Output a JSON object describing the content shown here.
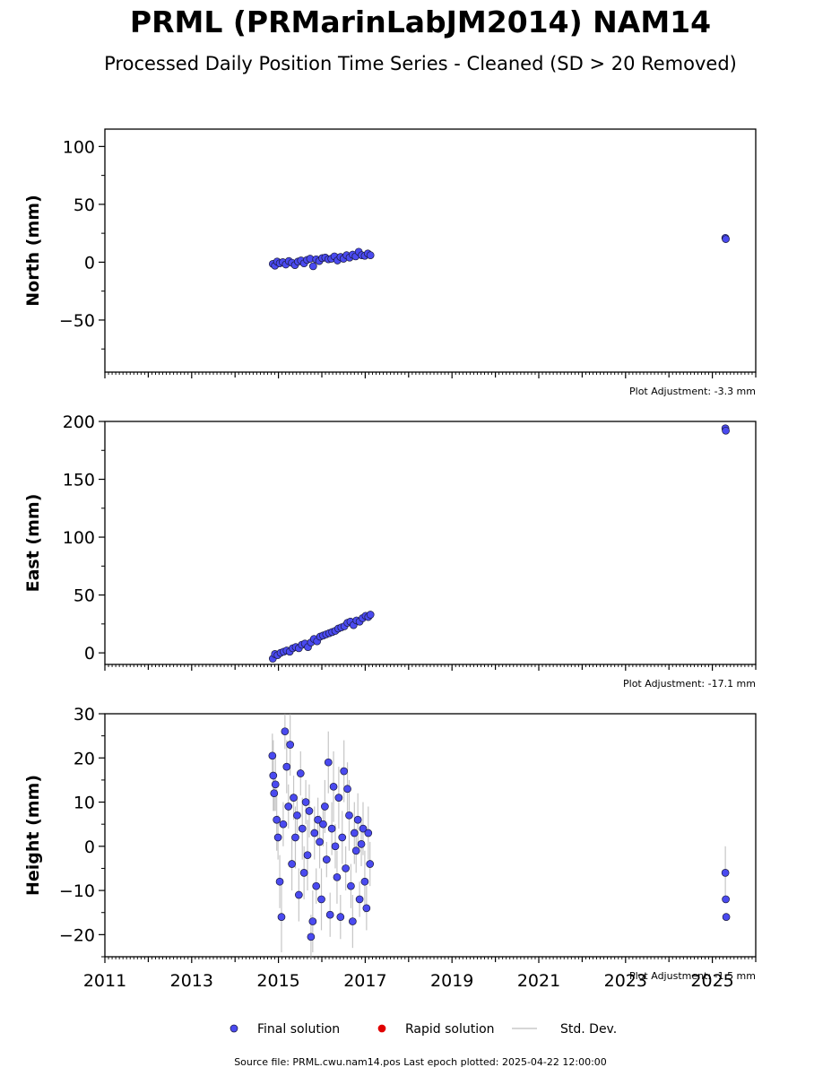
{
  "title": "PRML (PRMarinLabJM2014) NAM14",
  "subtitle": "Processed Daily Position Time Series - Cleaned (SD > 20 Removed)",
  "footer": "Source file: PRML.cwu.nam14.pos  Last epoch plotted: 2025-04-22 12:00:00",
  "legend": [
    {
      "label": "Final solution",
      "color": "#4a4af0",
      "kind": "dot"
    },
    {
      "label": "Rapid solution",
      "color": "#e00000",
      "kind": "dot"
    },
    {
      "label": "Std. Dev.",
      "color": "#c8c8c8",
      "kind": "line"
    }
  ],
  "colors": {
    "final": "#4a4af0",
    "rapid": "#e00000",
    "stddev": "#a0a0a0",
    "edge": "#1a1a3a"
  },
  "chart_data": [
    {
      "type": "scatter",
      "ylabel": "North (mm)",
      "adjustment": "Plot Adjustment: -3.3 mm",
      "xlim": [
        2011.0,
        2026.0
      ],
      "ylim": [
        -95,
        115
      ],
      "yticks": [
        -50,
        0,
        50,
        100
      ],
      "ytick_labels": [
        "−50",
        "0",
        "50",
        "100"
      ],
      "x": [
        2014.87,
        2014.92,
        2014.97,
        2015.03,
        2015.1,
        2015.17,
        2015.24,
        2015.31,
        2015.38,
        2015.45,
        2015.52,
        2015.59,
        2015.66,
        2015.73,
        2015.8,
        2015.87,
        2015.94,
        2016.01,
        2016.08,
        2016.15,
        2016.22,
        2016.29,
        2016.36,
        2016.43,
        2016.5,
        2016.57,
        2016.64,
        2016.71,
        2016.78,
        2016.85,
        2016.92,
        2016.99,
        2017.06,
        2017.12,
        2025.3,
        2025.31
      ],
      "y": [
        -1.5,
        -3.0,
        0.5,
        -1.0,
        0.0,
        -2.0,
        1.0,
        -0.5,
        -2.5,
        0.5,
        1.5,
        -1.0,
        2.0,
        3.0,
        -3.5,
        2.5,
        1.0,
        3.5,
        4.0,
        2.5,
        3.0,
        5.0,
        1.5,
        4.5,
        3.0,
        6.0,
        4.0,
        6.5,
        5.0,
        9.0,
        6.0,
        5.5,
        7.5,
        6.0,
        21.0,
        20.0
      ],
      "ystd": []
    },
    {
      "type": "scatter",
      "ylabel": "East (mm)",
      "adjustment": "Plot Adjustment: -17.1 mm",
      "xlim": [
        2011.0,
        2026.0
      ],
      "ylim": [
        -10,
        200
      ],
      "yticks": [
        0,
        50,
        100,
        150,
        200
      ],
      "ytick_labels": [
        "0",
        "50",
        "100",
        "150",
        "200"
      ],
      "x": [
        2014.87,
        2014.92,
        2014.98,
        2015.05,
        2015.12,
        2015.19,
        2015.26,
        2015.33,
        2015.4,
        2015.47,
        2015.54,
        2015.61,
        2015.68,
        2015.75,
        2015.82,
        2015.89,
        2015.96,
        2016.03,
        2016.1,
        2016.17,
        2016.24,
        2016.31,
        2016.38,
        2016.45,
        2016.52,
        2016.59,
        2016.66,
        2016.73,
        2016.8,
        2016.87,
        2016.94,
        2017.01,
        2017.07,
        2017.12,
        2025.3,
        2025.31
      ],
      "y": [
        -5.0,
        -1.0,
        -2.0,
        0.0,
        1.0,
        2.0,
        1.0,
        4.0,
        5.0,
        4.0,
        7.0,
        8.0,
        5.0,
        9.0,
        12.0,
        10.0,
        14.0,
        15.0,
        16.0,
        17.0,
        18.0,
        19.0,
        21.0,
        22.0,
        23.0,
        26.0,
        27.0,
        24.0,
        28.0,
        27.0,
        30.0,
        32.0,
        31.0,
        33.0,
        194.0,
        192.0
      ],
      "ystd": []
    },
    {
      "type": "scatter",
      "ylabel": "Height (mm)",
      "adjustment": "Plot Adjustment: -1.5 mm",
      "xlim": [
        2011.0,
        2026.0
      ],
      "ylim": [
        -25,
        30
      ],
      "yticks": [
        -20,
        -10,
        0,
        10,
        20,
        30
      ],
      "ytick_labels": [
        "−20",
        "−10",
        "0",
        "10",
        "20",
        "30"
      ],
      "xticks": [
        2011,
        2013,
        2015,
        2017,
        2019,
        2021,
        2023,
        2025
      ],
      "xtick_labels": [
        "2011",
        "2013",
        "2015",
        "2017",
        "2019",
        "2021",
        "2023",
        "2025"
      ],
      "x": [
        2014.86,
        2014.88,
        2014.9,
        2014.93,
        2014.96,
        2014.99,
        2015.03,
        2015.07,
        2015.11,
        2015.15,
        2015.19,
        2015.23,
        2015.27,
        2015.31,
        2015.35,
        2015.39,
        2015.43,
        2015.47,
        2015.51,
        2015.55,
        2015.59,
        2015.63,
        2015.67,
        2015.71,
        2015.75,
        2015.79,
        2015.83,
        2015.87,
        2015.91,
        2015.95,
        2015.99,
        2016.03,
        2016.07,
        2016.11,
        2016.15,
        2016.19,
        2016.23,
        2016.27,
        2016.31,
        2016.35,
        2016.39,
        2016.43,
        2016.47,
        2016.51,
        2016.55,
        2016.59,
        2016.63,
        2016.67,
        2016.71,
        2016.75,
        2016.79,
        2016.83,
        2016.87,
        2016.91,
        2016.95,
        2016.99,
        2017.03,
        2017.07,
        2017.11,
        2025.3,
        2025.31,
        2025.32
      ],
      "y": [
        20.5,
        16.0,
        12.0,
        14.0,
        6.0,
        2.0,
        -8.0,
        -16.0,
        5.0,
        26.0,
        18.0,
        9.0,
        23.0,
        -4.0,
        11.0,
        2.0,
        7.0,
        -11.0,
        16.5,
        4.0,
        -6.0,
        10.0,
        -2.0,
        8.0,
        -20.5,
        -17.0,
        3.0,
        -9.0,
        6.0,
        1.0,
        -12.0,
        5.0,
        9.0,
        -3.0,
        19.0,
        -15.5,
        4.0,
        13.5,
        0.0,
        -7.0,
        11.0,
        -16.0,
        2.0,
        17.0,
        -5.0,
        13.0,
        7.0,
        -9.0,
        -17.0,
        3.0,
        -1.0,
        6.0,
        -12.0,
        0.5,
        4.0,
        -8.0,
        -14.0,
        3.0,
        -4.0,
        -6.0,
        -12.0,
        -16.0
      ],
      "ystd": [
        5.0,
        8.0,
        4.0,
        6.0,
        7.0,
        5.0,
        6.0,
        8.0,
        5.0,
        4.0,
        6.0,
        5.0,
        7.0,
        6.0,
        5.0,
        7.0,
        4.0,
        6.0,
        5.0,
        7.0,
        6.0,
        5.0,
        8.0,
        6.0,
        5.0,
        7.0,
        6.0,
        4.0,
        5.0,
        6.0,
        7.0,
        5.0,
        6.0,
        4.0,
        7.0,
        5.0,
        6.0,
        8.0,
        5.0,
        6.0,
        7.0,
        5.0,
        6.0,
        7.0,
        5.0,
        6.0,
        8.0,
        5.0,
        6.0,
        7.0,
        5.0,
        6.0,
        4.0,
        5.0,
        6.0,
        7.0,
        5.0,
        6.0,
        5.0,
        6.0,
        0.0,
        0.0
      ]
    }
  ]
}
